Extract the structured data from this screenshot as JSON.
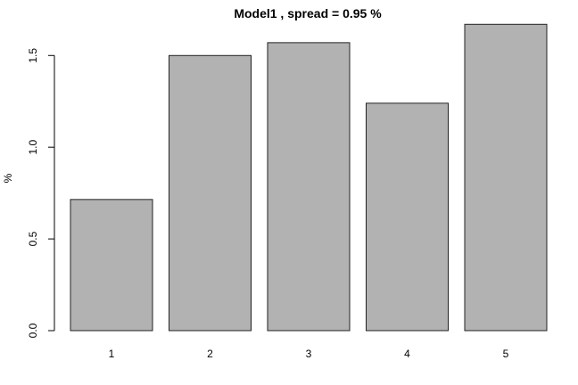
{
  "chart_data": {
    "type": "bar",
    "title": "Model1 , spread = 0.95 %",
    "xlabel": "",
    "ylabel": "%",
    "categories": [
      "1",
      "2",
      "3",
      "4",
      "5"
    ],
    "values": [
      0.715,
      1.5,
      1.57,
      1.24,
      1.67
    ],
    "ylim": [
      0,
      1.72
    ],
    "yticks": [
      0.0,
      0.5,
      1.0,
      1.5
    ],
    "ytick_labels": [
      "0.0",
      "0.5",
      "1.0",
      "1.5"
    ],
    "grid": false,
    "legend": "none",
    "bar_color": "#b2b2b2",
    "bar_edge_color": "#222222"
  }
}
